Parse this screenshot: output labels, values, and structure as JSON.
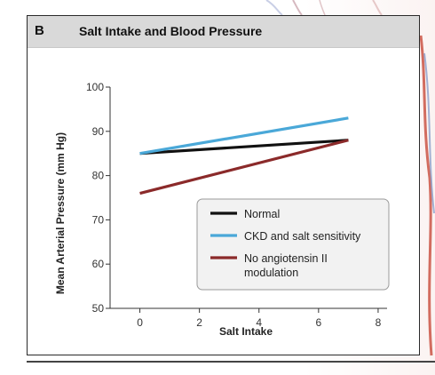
{
  "panel": {
    "letter": "B",
    "title": "Salt Intake and Blood Pressure"
  },
  "chart_data": {
    "type": "line",
    "title": "Salt Intake and Blood Pressure",
    "xlabel": "Salt Intake",
    "ylabel": "Mean Arterial Pressure (mm Hg)",
    "xlim": [
      -1,
      8.3
    ],
    "ylim": [
      50,
      100
    ],
    "xticks": [
      0,
      2,
      4,
      6,
      8
    ],
    "yticks": [
      50,
      60,
      70,
      80,
      90,
      100
    ],
    "grid": false,
    "legend_position": "lower-right",
    "series": [
      {
        "name": "Normal",
        "color": "#111111",
        "x": [
          0,
          7
        ],
        "y": [
          85,
          88
        ]
      },
      {
        "name": "CKD and salt sensitivity",
        "color": "#4aa8d8",
        "x": [
          0,
          7
        ],
        "y": [
          85,
          93
        ]
      },
      {
        "name": "No angiotensin II modulation",
        "color": "#8b2a2a",
        "x": [
          0,
          7
        ],
        "y": [
          76,
          88
        ]
      }
    ]
  }
}
